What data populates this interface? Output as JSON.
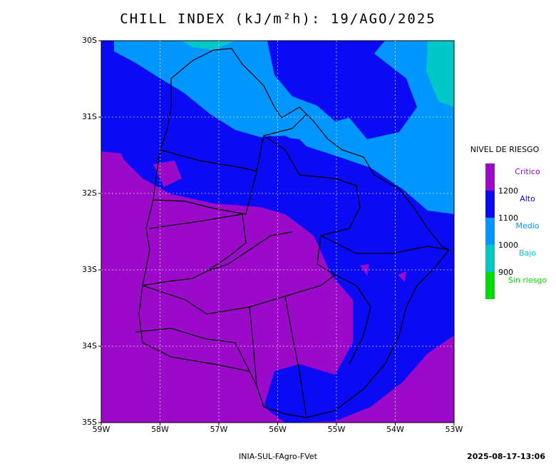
{
  "title": "CHILL INDEX (kJ/m²h): 19/AGO/2025",
  "map": {
    "lat_labels": [
      "30S",
      "31S",
      "32S",
      "33S",
      "34S",
      "35S"
    ],
    "lon_labels": [
      "59W",
      "58W",
      "57W",
      "56W",
      "55W",
      "54W",
      "53W"
    ]
  },
  "legend": {
    "title": "NIVEL DE RIESGO",
    "levels": [
      {
        "label": "Critico",
        "color": "#9a0ac8"
      },
      {
        "label": "Alto",
        "color": "#0a0af5"
      },
      {
        "label": "Medio",
        "color": "#0096ff"
      },
      {
        "label": "Bajo",
        "color": "#00c8c8"
      },
      {
        "label": "Sin riesgo",
        "color": "#00dc00"
      }
    ],
    "thresholds": [
      1200,
      1100,
      1000,
      900
    ]
  },
  "footer": {
    "source": "INIA-SUL-FAgro-FVet",
    "timestamp": "2025-08-17-13:06"
  }
}
